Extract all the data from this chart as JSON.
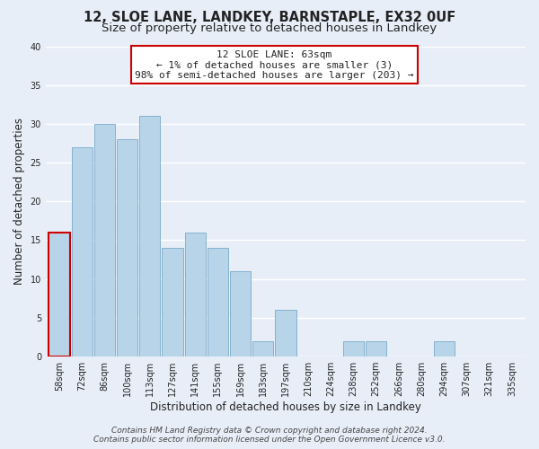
{
  "title": "12, SLOE LANE, LANDKEY, BARNSTAPLE, EX32 0UF",
  "subtitle": "Size of property relative to detached houses in Landkey",
  "xlabel": "Distribution of detached houses by size in Landkey",
  "ylabel": "Number of detached properties",
  "bin_labels": [
    "58sqm",
    "72sqm",
    "86sqm",
    "100sqm",
    "113sqm",
    "127sqm",
    "141sqm",
    "155sqm",
    "169sqm",
    "183sqm",
    "197sqm",
    "210sqm",
    "224sqm",
    "238sqm",
    "252sqm",
    "266sqm",
    "280sqm",
    "294sqm",
    "307sqm",
    "321sqm",
    "335sqm"
  ],
  "bar_heights": [
    16,
    27,
    30,
    28,
    31,
    14,
    16,
    14,
    11,
    2,
    6,
    0,
    0,
    2,
    2,
    0,
    0,
    2,
    0,
    0,
    0
  ],
  "bar_color": "#b8d4e8",
  "bar_edge_color": "#7aaac8",
  "highlight_bar_index": 0,
  "highlight_border_color": "#cc0000",
  "annotation_title": "12 SLOE LANE: 63sqm",
  "annotation_line1": "← 1% of detached houses are smaller (3)",
  "annotation_line2": "98% of semi-detached houses are larger (203) →",
  "annotation_box_color": "#ffffff",
  "annotation_border_color": "#cc0000",
  "ylim": [
    0,
    40
  ],
  "yticks": [
    0,
    5,
    10,
    15,
    20,
    25,
    30,
    35,
    40
  ],
  "footer_line1": "Contains HM Land Registry data © Crown copyright and database right 2024.",
  "footer_line2": "Contains public sector information licensed under the Open Government Licence v3.0.",
  "bg_color": "#e8eef8",
  "grid_color": "#ffffff",
  "title_fontsize": 10.5,
  "subtitle_fontsize": 9.5,
  "axis_label_fontsize": 8.5,
  "tick_fontsize": 7,
  "annotation_fontsize": 8,
  "footer_fontsize": 6.5
}
